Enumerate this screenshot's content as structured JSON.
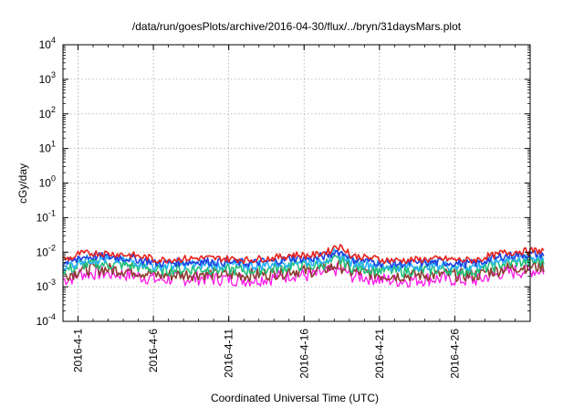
{
  "chart_data": {
    "type": "line",
    "title": "/data/run/goesPlots/archive/2016-04-30/flux/../bryn/31daysMars.plot",
    "xlabel": "Coordinated Universal Time (UTC)",
    "ylabel": "cGy/day",
    "yscale": "log",
    "ylim": [
      0.0001,
      10000
    ],
    "ytick_labels": [
      {
        "base": "10",
        "exp": "-4"
      },
      {
        "base": "10",
        "exp": "-3"
      },
      {
        "base": "10",
        "exp": "-2"
      },
      {
        "base": "10",
        "exp": "-1"
      },
      {
        "base": "10",
        "exp": "0"
      },
      {
        "base": "10",
        "exp": "1"
      },
      {
        "base": "10",
        "exp": "2"
      },
      {
        "base": "10",
        "exp": "3"
      },
      {
        "base": "10",
        "exp": "4"
      }
    ],
    "xlim": [
      "2016-03-31",
      "2016-05-01"
    ],
    "x_tick_labels": [
      "2016-4-1",
      "2016-4-6",
      "2016-4-11",
      "2016-4-16",
      "2016-4-21",
      "2016-4-26"
    ],
    "grid": true,
    "series": [
      {
        "color": "#e8231d",
        "values": [
          0.0062,
          0.009,
          0.0095,
          0.009,
          0.0085,
          0.0075,
          0.006,
          0.0062,
          0.0065,
          0.0068,
          0.0066,
          0.0064,
          0.006,
          0.0065,
          0.007,
          0.0085,
          0.008,
          0.009,
          0.016,
          0.0078,
          0.007,
          0.006,
          0.0058,
          0.006,
          0.0062,
          0.0064,
          0.006,
          0.0058,
          0.0075,
          0.0095,
          0.0105,
          0.011
        ]
      },
      {
        "color": "#1f3fe0",
        "values": [
          0.0048,
          0.0072,
          0.0075,
          0.0072,
          0.0068,
          0.006,
          0.0048,
          0.005,
          0.0052,
          0.0054,
          0.0053,
          0.0051,
          0.0048,
          0.0052,
          0.0056,
          0.0068,
          0.0064,
          0.0072,
          0.011,
          0.0062,
          0.0056,
          0.0048,
          0.0046,
          0.0048,
          0.005,
          0.0051,
          0.0048,
          0.0046,
          0.006,
          0.0076,
          0.0084,
          0.0088
        ]
      },
      {
        "color": "#2bb0ff",
        "values": [
          0.004,
          0.006,
          0.0062,
          0.006,
          0.0057,
          0.005,
          0.004,
          0.0042,
          0.0044,
          0.0045,
          0.0044,
          0.0043,
          0.004,
          0.0043,
          0.0047,
          0.0057,
          0.0053,
          0.006,
          0.009,
          0.0052,
          0.0047,
          0.004,
          0.0038,
          0.004,
          0.0042,
          0.0043,
          0.004,
          0.0038,
          0.005,
          0.0063,
          0.007,
          0.0073
        ]
      },
      {
        "color": "#1fbf7a",
        "values": [
          0.003,
          0.0044,
          0.0046,
          0.0044,
          0.0042,
          0.0037,
          0.003,
          0.0031,
          0.0032,
          0.0033,
          0.0032,
          0.0031,
          0.003,
          0.0032,
          0.0034,
          0.0042,
          0.0039,
          0.0044,
          0.006,
          0.0038,
          0.0034,
          0.003,
          0.0028,
          0.003,
          0.0031,
          0.0032,
          0.003,
          0.0028,
          0.0037,
          0.0046,
          0.0051,
          0.0054
        ]
      },
      {
        "color": "#8b3f2f",
        "values": [
          0.0022,
          0.0032,
          0.0033,
          0.0032,
          0.003,
          0.0027,
          0.0022,
          0.0022,
          0.0023,
          0.0024,
          0.0023,
          0.0023,
          0.0022,
          0.0023,
          0.0025,
          0.003,
          0.0028,
          0.0032,
          0.0042,
          0.0027,
          0.0025,
          0.0022,
          0.0021,
          0.0022,
          0.0022,
          0.0023,
          0.0022,
          0.0021,
          0.0027,
          0.0033,
          0.0037,
          0.0039
        ]
      },
      {
        "color": "#ff18e8",
        "values": [
          0.0016,
          0.0024,
          0.0025,
          0.0024,
          0.0023,
          0.002,
          0.0016,
          0.0017,
          0.0017,
          0.0018,
          0.0017,
          0.0017,
          0.0016,
          0.0017,
          0.0019,
          0.0023,
          0.0021,
          0.0024,
          0.0032,
          0.0021,
          0.0019,
          0.0016,
          0.0015,
          0.0016,
          0.0017,
          0.0017,
          0.0016,
          0.0015,
          0.002,
          0.0025,
          0.0028,
          0.003
        ]
      }
    ]
  }
}
